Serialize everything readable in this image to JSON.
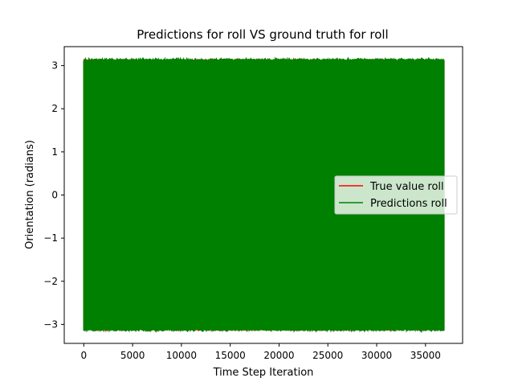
{
  "chart_data": {
    "type": "line",
    "title": "Predictions for roll VS ground truth for roll",
    "xlabel": "Time Step Iteration",
    "ylabel": "Orientation (radians)",
    "xlim": [
      -2000,
      38800
    ],
    "ylim": [
      -3.44,
      3.44
    ],
    "x_ticks": [
      0,
      5000,
      10000,
      15000,
      20000,
      25000,
      30000,
      35000
    ],
    "x_tick_labels": [
      "0",
      "5000",
      "10000",
      "15000",
      "20000",
      "25000",
      "30000",
      "35000"
    ],
    "y_ticks": [
      -3,
      -2,
      -1,
      0,
      1,
      2,
      3
    ],
    "y_tick_labels": [
      "−3",
      "−2",
      "−1",
      "0",
      "1",
      "2",
      "3"
    ],
    "grid": false,
    "legend": {
      "placement": "center-right"
    },
    "x_range": [
      0,
      36900
    ],
    "series": [
      {
        "name": "True value roll",
        "color": "#ff0000",
        "y_range": [
          -3.14,
          3.14
        ],
        "hidden_behind": "Predictions roll"
      },
      {
        "name": "Predictions roll",
        "color": "#008000",
        "y_range": [
          -3.15,
          3.16
        ]
      }
    ]
  }
}
